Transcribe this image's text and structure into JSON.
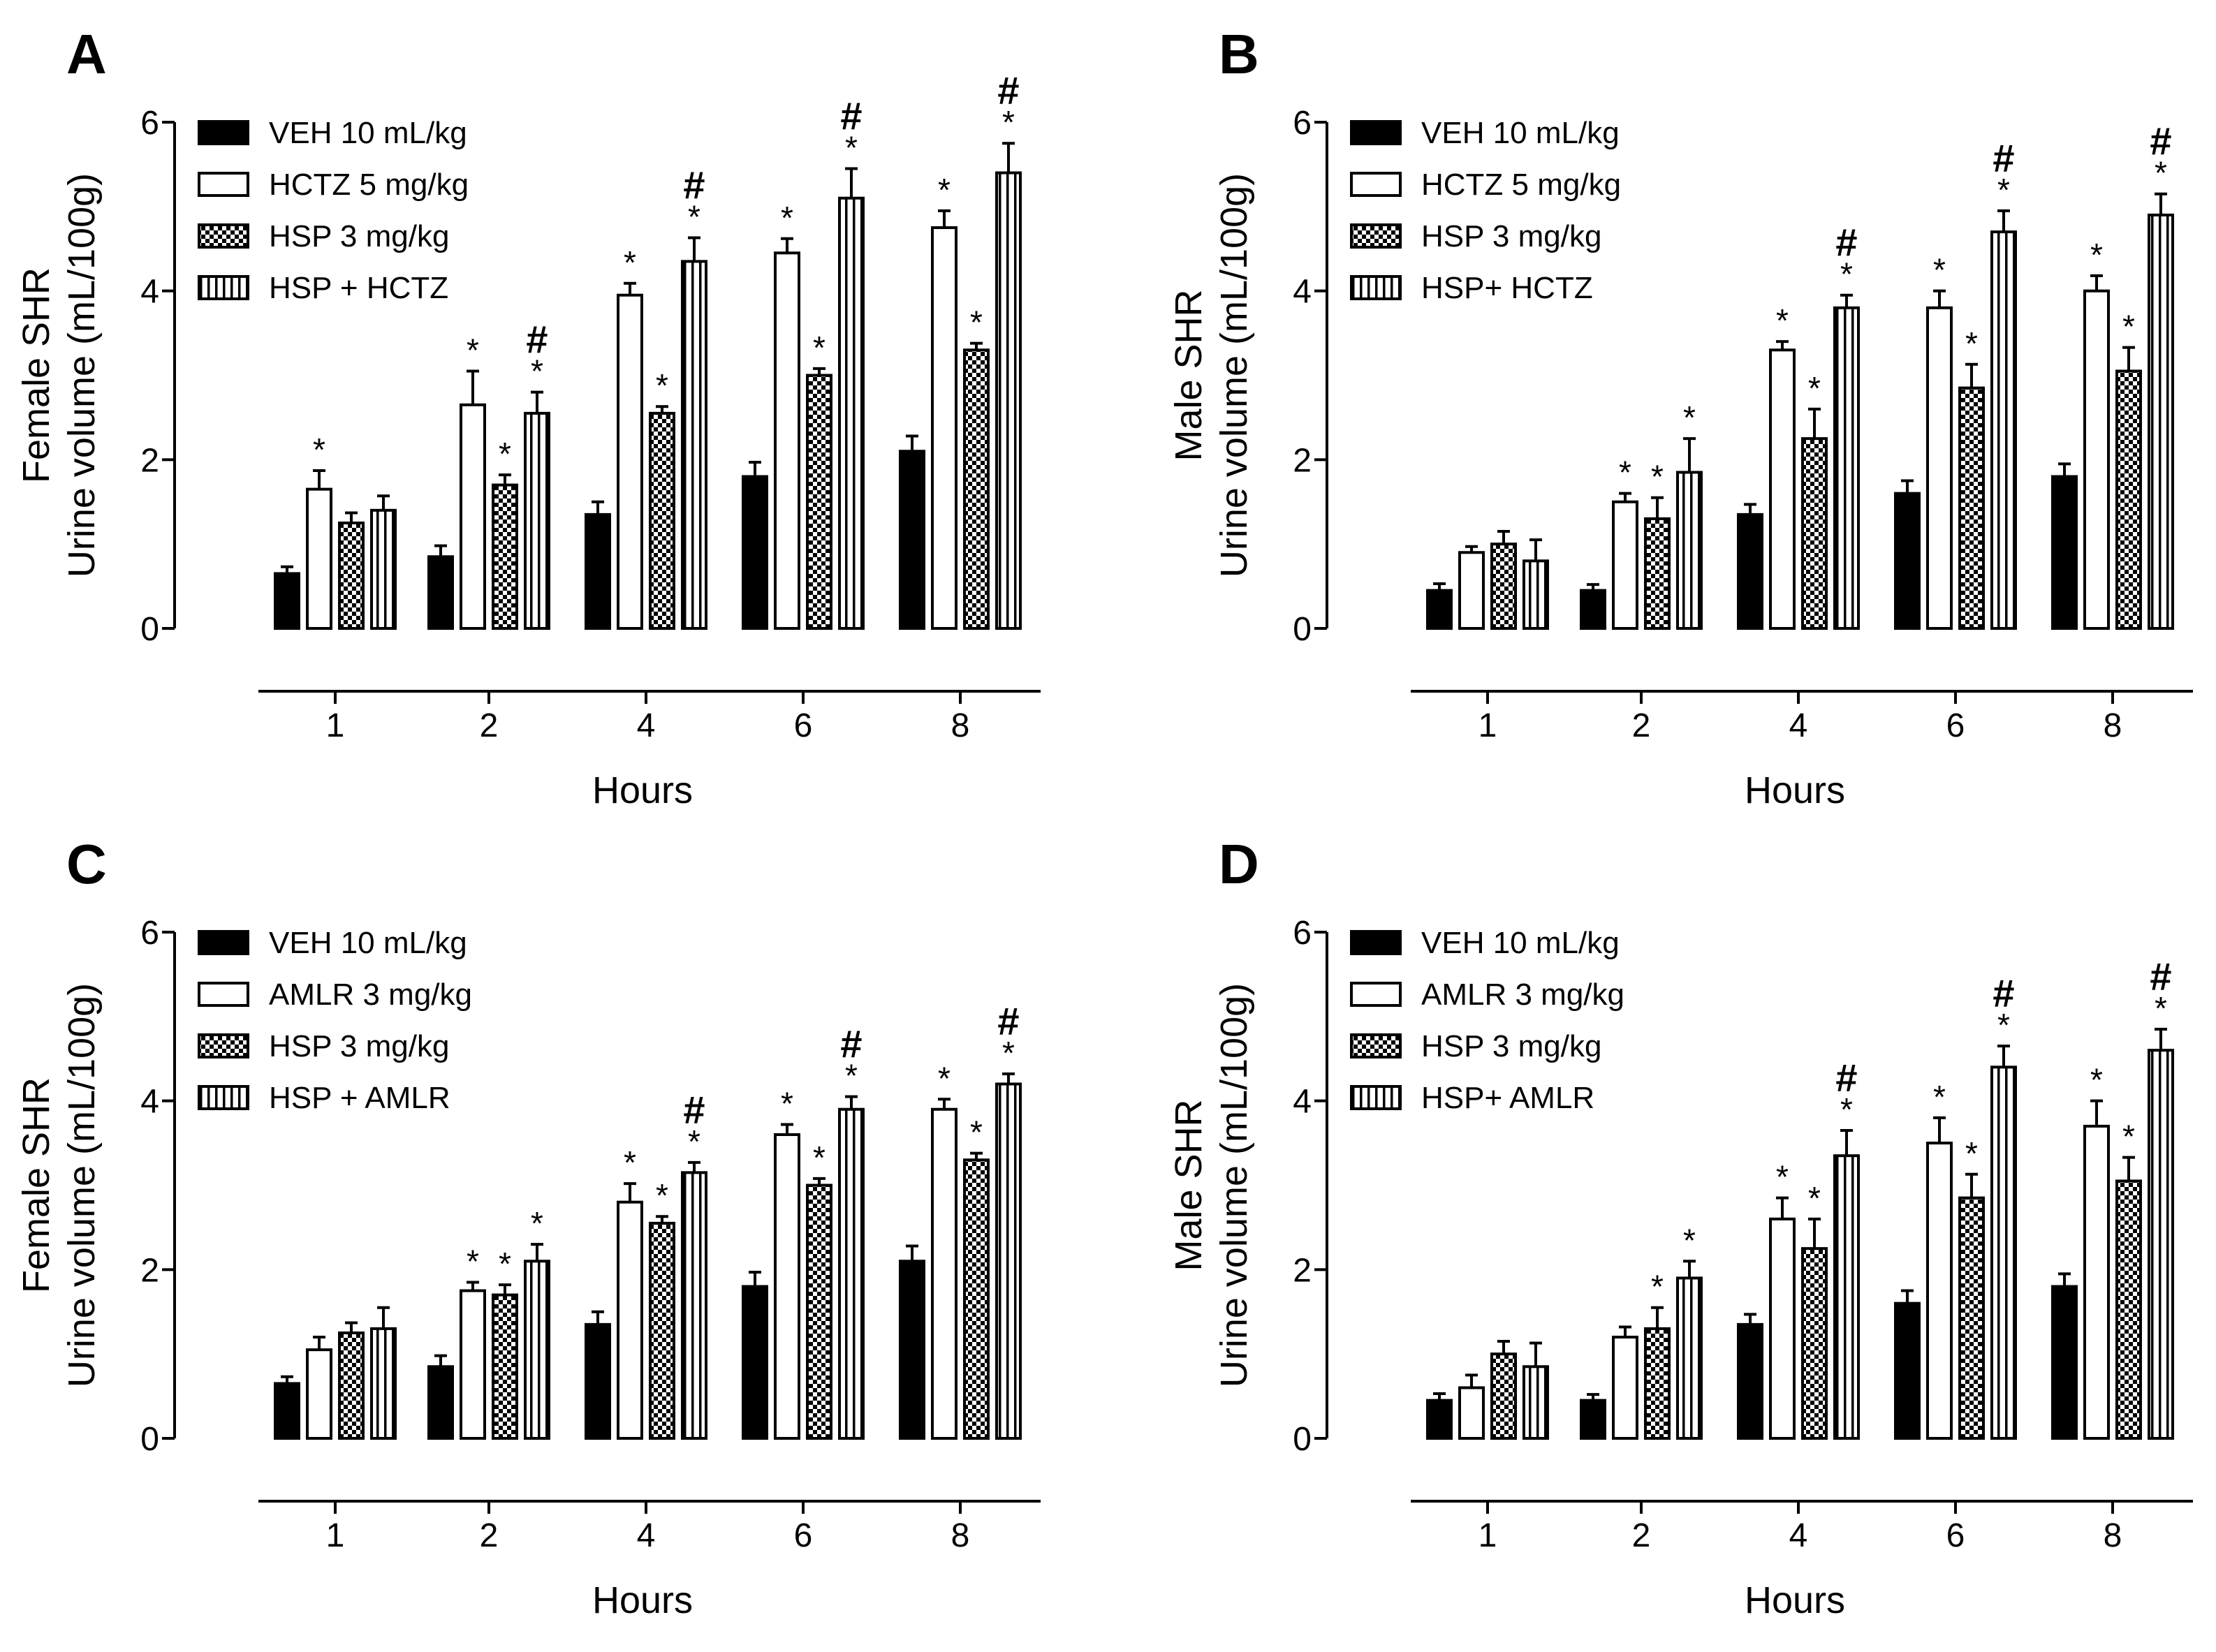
{
  "figure": {
    "colors": {
      "ink": "#000000",
      "paper": "#ffffff"
    },
    "series_styles": [
      "solid",
      "open",
      "checker",
      "vstripe"
    ]
  },
  "chart_data": [
    {
      "panel": "A",
      "type": "bar",
      "ylabel_line1": "Female SHR",
      "ylabel_line2": "Urine volume (mL/100g)",
      "xlabel": "Hours",
      "ylim": [
        0,
        6
      ],
      "yticks": [
        0,
        2,
        4,
        6
      ],
      "categories": [
        "1",
        "2",
        "4",
        "6",
        "8"
      ],
      "legend_position": "top-left",
      "series": [
        {
          "name": "VEH 10 mL/kg",
          "values": [
            0.65,
            0.85,
            1.35,
            1.8,
            2.1
          ],
          "errors": [
            0.08,
            0.13,
            0.15,
            0.17,
            0.18
          ],
          "marks": [
            "",
            "",
            "",
            "",
            ""
          ]
        },
        {
          "name": "HCTZ 5 mg/kg",
          "values": [
            1.65,
            2.65,
            3.95,
            4.45,
            4.75
          ],
          "errors": [
            0.22,
            0.4,
            0.14,
            0.17,
            0.2
          ],
          "marks": [
            "*",
            "*",
            "*",
            "*",
            "*"
          ]
        },
        {
          "name": "HSP 3 mg/kg",
          "values": [
            1.25,
            1.7,
            2.55,
            3.0,
            3.3
          ],
          "errors": [
            0.12,
            0.12,
            0.08,
            0.08,
            0.08
          ],
          "marks": [
            "",
            "*",
            "*",
            "*",
            "*"
          ]
        },
        {
          "name": "HSP + HCTZ",
          "values": [
            1.4,
            2.55,
            4.35,
            5.1,
            5.4
          ],
          "errors": [
            0.17,
            0.25,
            0.28,
            0.35,
            0.35
          ],
          "marks": [
            "",
            "*#",
            "*#",
            "*#",
            "*#"
          ]
        }
      ]
    },
    {
      "panel": "B",
      "type": "bar",
      "ylabel_line1": "Male SHR",
      "ylabel_line2": "Urine volume (mL/100g)",
      "xlabel": "Hours",
      "ylim": [
        0,
        6
      ],
      "yticks": [
        0,
        2,
        4,
        6
      ],
      "categories": [
        "1",
        "2",
        "4",
        "6",
        "8"
      ],
      "legend_position": "top-left",
      "series": [
        {
          "name": "VEH 10 mL/kg",
          "values": [
            0.45,
            0.45,
            1.35,
            1.6,
            1.8
          ],
          "errors": [
            0.08,
            0.07,
            0.12,
            0.15,
            0.15
          ],
          "marks": [
            "",
            "",
            "",
            "",
            ""
          ]
        },
        {
          "name": "HCTZ 5 mg/kg",
          "values": [
            0.9,
            1.5,
            3.3,
            3.8,
            4.0
          ],
          "errors": [
            0.07,
            0.1,
            0.1,
            0.2,
            0.18
          ],
          "marks": [
            "",
            "*",
            "*",
            "*",
            "*"
          ]
        },
        {
          "name": "HSP 3 mg/kg",
          "values": [
            1.0,
            1.3,
            2.25,
            2.85,
            3.05
          ],
          "errors": [
            0.15,
            0.25,
            0.35,
            0.28,
            0.28
          ],
          "marks": [
            "",
            "*",
            "*",
            "*",
            "*"
          ]
        },
        {
          "name": "HSP+ HCTZ",
          "values": [
            0.8,
            1.85,
            3.8,
            4.7,
            4.9
          ],
          "errors": [
            0.25,
            0.4,
            0.15,
            0.25,
            0.25
          ],
          "marks": [
            "",
            "*",
            "*#",
            "*#",
            "*#"
          ]
        }
      ]
    },
    {
      "panel": "C",
      "type": "bar",
      "ylabel_line1": "Female SHR",
      "ylabel_line2": "Urine volume (mL/100g)",
      "xlabel": "Hours",
      "ylim": [
        0,
        6
      ],
      "yticks": [
        0,
        2,
        4,
        6
      ],
      "categories": [
        "1",
        "2",
        "4",
        "6",
        "8"
      ],
      "legend_position": "top-left",
      "series": [
        {
          "name": "VEH 10 mL/kg",
          "values": [
            0.65,
            0.85,
            1.35,
            1.8,
            2.1
          ],
          "errors": [
            0.08,
            0.13,
            0.15,
            0.17,
            0.18
          ],
          "marks": [
            "",
            "",
            "",
            "",
            ""
          ]
        },
        {
          "name": "AMLR 3 mg/kg",
          "values": [
            1.05,
            1.75,
            2.8,
            3.6,
            3.9
          ],
          "errors": [
            0.15,
            0.1,
            0.22,
            0.12,
            0.12
          ],
          "marks": [
            "",
            "*",
            "*",
            "*",
            "*"
          ]
        },
        {
          "name": "HSP 3 mg/kg",
          "values": [
            1.25,
            1.7,
            2.55,
            3.0,
            3.3
          ],
          "errors": [
            0.12,
            0.12,
            0.08,
            0.08,
            0.08
          ],
          "marks": [
            "",
            "*",
            "*",
            "*",
            "*"
          ]
        },
        {
          "name": "HSP + AMLR",
          "values": [
            1.3,
            2.1,
            3.15,
            3.9,
            4.2
          ],
          "errors": [
            0.25,
            0.2,
            0.12,
            0.15,
            0.12
          ],
          "marks": [
            "",
            "*",
            "*#",
            "*#",
            "*#"
          ]
        }
      ]
    },
    {
      "panel": "D",
      "type": "bar",
      "ylabel_line1": "Male SHR",
      "ylabel_line2": "Urine volume (mL/100g)",
      "xlabel": "Hours",
      "ylim": [
        0,
        6
      ],
      "yticks": [
        0,
        2,
        4,
        6
      ],
      "categories": [
        "1",
        "2",
        "4",
        "6",
        "8"
      ],
      "legend_position": "top-left",
      "series": [
        {
          "name": "VEH 10 mL/kg",
          "values": [
            0.45,
            0.45,
            1.35,
            1.6,
            1.8
          ],
          "errors": [
            0.08,
            0.07,
            0.12,
            0.15,
            0.15
          ],
          "marks": [
            "",
            "",
            "",
            "",
            ""
          ]
        },
        {
          "name": "AMLR 3 mg/kg",
          "values": [
            0.6,
            1.2,
            2.6,
            3.5,
            3.7
          ],
          "errors": [
            0.15,
            0.12,
            0.25,
            0.3,
            0.3
          ],
          "marks": [
            "",
            "",
            "*",
            "*",
            "*"
          ]
        },
        {
          "name": "HSP 3 mg/kg",
          "values": [
            1.0,
            1.3,
            2.25,
            2.85,
            3.05
          ],
          "errors": [
            0.15,
            0.25,
            0.35,
            0.28,
            0.28
          ],
          "marks": [
            "",
            "*",
            "*",
            "*",
            "*"
          ]
        },
        {
          "name": "HSP+ AMLR",
          "values": [
            0.85,
            1.9,
            3.35,
            4.4,
            4.6
          ],
          "errors": [
            0.28,
            0.2,
            0.3,
            0.25,
            0.25
          ],
          "marks": [
            "",
            "*",
            "*#",
            "*#",
            "*#"
          ]
        }
      ]
    }
  ]
}
